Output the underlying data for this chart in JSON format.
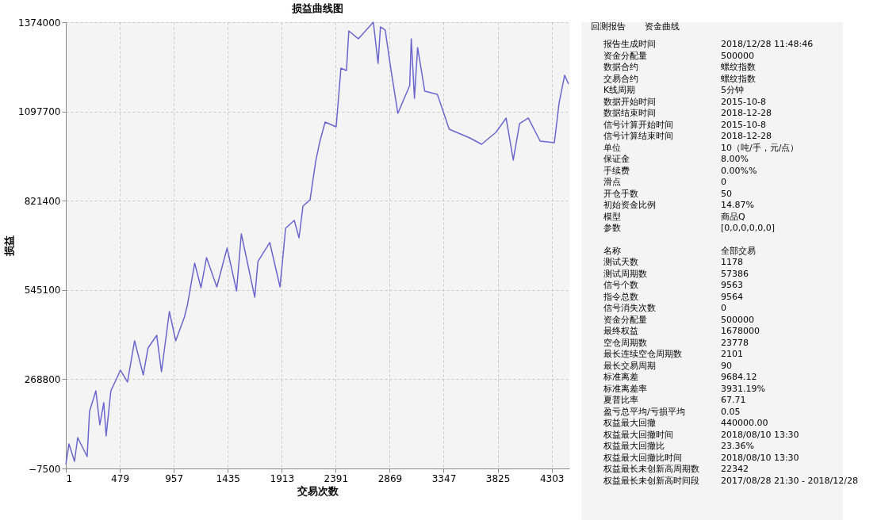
{
  "chart_data": [
    {
      "type": "line",
      "title": "损益曲线图",
      "xlabel": "交易次数",
      "ylabel": "损益",
      "x": [
        1,
        29,
        78,
        106,
        190,
        211,
        267,
        302,
        337,
        358,
        400,
        456,
        484,
        547,
        610,
        687,
        729,
        806,
        848,
        918,
        974,
        1051,
        1079,
        1142,
        1198,
        1247,
        1338,
        1429,
        1513,
        1555,
        1674,
        1702,
        1807,
        1898,
        1947,
        2024,
        2066,
        2101,
        2164,
        2213,
        2248,
        2297,
        2395,
        2437,
        2486,
        2507,
        2591,
        2724,
        2766,
        2787,
        2829,
        2878,
        2941,
        3046,
        3060,
        3088,
        3116,
        3179,
        3291,
        3396,
        3578,
        3683,
        3809,
        3900,
        3963,
        4019,
        4096,
        4201,
        4327,
        4369,
        4418,
        4453
      ],
      "series": [
        {
          "color": "#6a66cf",
          "values": [
            5000,
            68600,
            14600,
            88200,
            29300,
            169200,
            233000,
            127500,
            196200,
            93100,
            233000,
            274700,
            296800,
            260000,
            387600,
            282100,
            365500,
            404800,
            291900,
            478400,
            387600,
            461200,
            500500,
            628100,
            552000,
            645300,
            554500,
            674700,
            542200,
            718900,
            522600,
            633000,
            691900,
            554500,
            736100,
            760600,
            706600,
            804800,
            824400,
            942200,
            1001100,
            1064900,
            1050200,
            1231800,
            1224400,
            1347100,
            1322600,
            1374000,
            1246500,
            1359400,
            1349600,
            1231800,
            1091900,
            1177800,
            1322600,
            1138500,
            1295600,
            1160600,
            1150800,
            1042800,
            1015800,
            996200,
            1033000,
            1077200,
            947100,
            1060000,
            1077200,
            1006000,
            1001100,
            1123800,
            1209700,
            1182700
          ]
        }
      ],
      "xlim": [
        1,
        4460
      ],
      "xticks": [
        1,
        479,
        957,
        1435,
        1913,
        2391,
        2869,
        3347,
        3825,
        4303
      ],
      "ylim": [
        -7500,
        1374000
      ],
      "yticks": [
        -7500,
        268800,
        545100,
        821400,
        1097700,
        1374000
      ],
      "grid": true,
      "legend": false
    },
    {
      "type": "other",
      "annotations": [
        "回测报告",
        "资金曲线",
        "报告生成时间",
        "2018/12/28 11:48:46",
        "资金分配量",
        "500000",
        "数据合约",
        "螺纹指数",
        "交易合约",
        "螺纹指数",
        "K线周期",
        "5分钟",
        "数据开始时间",
        "2015-10-8",
        "数据结束时间",
        "2018-12-28",
        "信号计算开始时间",
        "2015-10-8",
        "信号计算结束时间",
        "2018-12-28",
        "单位",
        "10（吨/手，元/点）",
        "保证金",
        "8.00%",
        "手续费",
        "0.00%%",
        "滑点",
        "0",
        "开仓手数",
        "50",
        "初始资金比例",
        "14.87%",
        "模型",
        "商品Q",
        "参数",
        "[0,0,0,0,0,0]",
        "名称",
        "全部交易",
        "测试天数",
        "1178",
        "测试周期数",
        "57386",
        "信号个数",
        "9563",
        "指令总数",
        "9564",
        "信号消失次数",
        "0",
        "资金分配量",
        "500000",
        "最终权益",
        "1678000",
        "空仓周期数",
        "23778",
        "最长连续空仓周期数",
        "2101",
        "最长交易周期",
        "90",
        "标准离差",
        "9684.12",
        "标准离差率",
        "3931.19%",
        "夏普比率",
        "67.71",
        "盈亏总平均/亏损平均",
        "0.05",
        "权益最大回撤",
        "440000.00",
        "权益最大回撤时间",
        "2018/08/10 13:30",
        "权益最大回撤比",
        "23.36%",
        "权益最大回撤比时间",
        "2018/08/10 13:30",
        "权益最长未创新高周期数",
        "22342",
        "权益最长未创新高时间段",
        "2017/08/28 21:30 - 2018/12/28"
      ]
    }
  ]
}
